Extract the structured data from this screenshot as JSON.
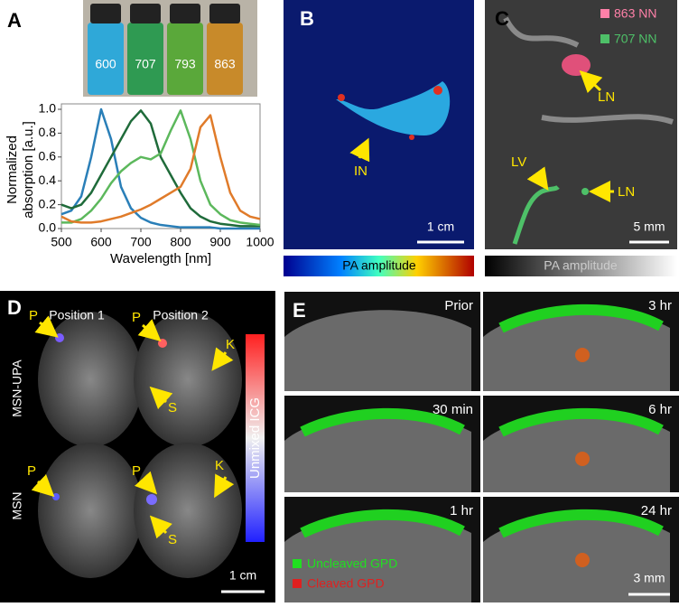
{
  "chart_data": {
    "type": "line",
    "xlabel": "Wavelength [nm]",
    "ylabel_lines": [
      "Normalized",
      "absorption [a.u.]"
    ],
    "x": [
      500,
      525,
      550,
      575,
      600,
      625,
      650,
      675,
      700,
      725,
      750,
      775,
      800,
      825,
      850,
      875,
      900,
      925,
      950,
      975,
      1000
    ],
    "series": [
      {
        "name": "600",
        "color": "#2a7fb8",
        "values": [
          0.12,
          0.15,
          0.27,
          0.6,
          1.0,
          0.75,
          0.35,
          0.17,
          0.09,
          0.05,
          0.03,
          0.02,
          0.01,
          0.01,
          0.01,
          0.01,
          0.0,
          0.0,
          0.0,
          0.0,
          0.0
        ]
      },
      {
        "name": "707",
        "color": "#1f6b3a",
        "values": [
          0.2,
          0.17,
          0.2,
          0.3,
          0.45,
          0.6,
          0.75,
          0.9,
          0.99,
          0.88,
          0.6,
          0.45,
          0.3,
          0.17,
          0.1,
          0.06,
          0.04,
          0.03,
          0.02,
          0.02,
          0.02
        ]
      },
      {
        "name": "793",
        "color": "#5cb85c",
        "values": [
          0.05,
          0.05,
          0.08,
          0.15,
          0.25,
          0.38,
          0.48,
          0.55,
          0.6,
          0.58,
          0.63,
          0.82,
          0.99,
          0.75,
          0.4,
          0.2,
          0.12,
          0.07,
          0.05,
          0.04,
          0.03
        ]
      },
      {
        "name": "863",
        "color": "#e07b2a",
        "values": [
          0.1,
          0.06,
          0.05,
          0.05,
          0.06,
          0.08,
          0.1,
          0.13,
          0.16,
          0.2,
          0.25,
          0.3,
          0.35,
          0.5,
          0.85,
          0.95,
          0.6,
          0.3,
          0.15,
          0.1,
          0.08
        ]
      }
    ],
    "xlim": [
      500,
      1000
    ],
    "xticks": [
      500,
      600,
      700,
      800,
      900,
      1000
    ],
    "ylim": [
      0,
      1
    ],
    "yticks": [
      {
        "value": 0,
        "label": "0.0"
      },
      {
        "value": 0.2,
        "label": "0.2"
      },
      {
        "value": 0.4,
        "label": "0.4"
      },
      {
        "value": 0.6,
        "label": "0.6"
      },
      {
        "value": 0.8,
        "label": "0.8"
      },
      {
        "value": 1,
        "label": "1.0"
      }
    ]
  },
  "panels": {
    "a": {
      "letter": "A"
    },
    "b": {
      "letter": "B",
      "arrow": "IN",
      "scale": "1 cm",
      "colorbar": "PA amplitude"
    },
    "c": {
      "letter": "C",
      "legend": [
        "863 NN",
        "707 NN"
      ],
      "arrows": [
        "LN",
        "LV",
        "LN"
      ],
      "scale": "5 mm",
      "colorbar": "PA amplitude"
    },
    "d": {
      "letter": "D",
      "columns": [
        "Position 1",
        "Position 2"
      ],
      "rows": [
        "MSN-UPA",
        "MSN"
      ],
      "arrows": [
        "P",
        "P",
        "K",
        "S",
        "P",
        "P",
        "K",
        "S"
      ],
      "colorbar": "Unmixed ICG",
      "scale": "1 cm"
    },
    "e": {
      "letter": "E",
      "times": [
        "Prior",
        "3 hr",
        "30 min",
        "6 hr",
        "1 hr",
        "24 hr"
      ],
      "legend": [
        "Uncleaved GPD",
        "Cleaved GPD"
      ],
      "scale": "3 mm"
    }
  }
}
